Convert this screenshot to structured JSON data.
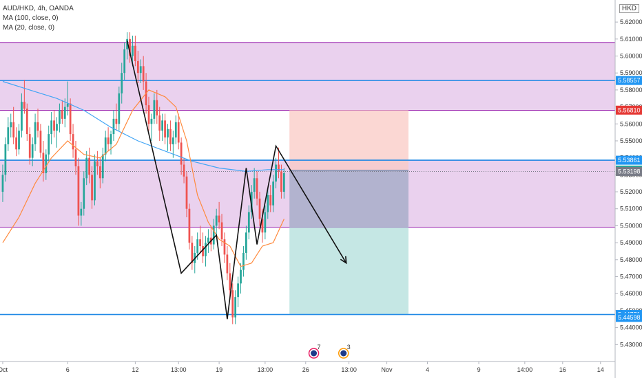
{
  "header": {
    "symbol_line": "AUD/HKD, 4h, OANDA",
    "ma1": "MA (100, close, 0)",
    "ma2": "MA (20, close, 0)",
    "currency": "HKD"
  },
  "events": [
    {
      "icon": "flag-au-icon",
      "count": "7",
      "x_label": "27"
    },
    {
      "icon": "flag-au-icon",
      "count": "3",
      "x_label": "29"
    }
  ],
  "chart_data": {
    "type": "candlestick",
    "symbol": "AUD/HKD",
    "timeframe": "4h",
    "ylim": [
      5.42,
      5.633
    ],
    "y_ticks": [
      "5.62000",
      "5.61000",
      "5.60000",
      "5.59000",
      "5.58000",
      "5.57000",
      "5.56000",
      "5.55000",
      "5.54000",
      "5.53000",
      "5.52000",
      "5.51000",
      "5.50000",
      "5.49000",
      "5.48000",
      "5.47000",
      "5.46000",
      "5.45000",
      "5.44000",
      "5.43000"
    ],
    "x_ticks": [
      {
        "label": "Oct",
        "bar": 0
      },
      {
        "label": "6",
        "bar": 24
      },
      {
        "label": "12",
        "bar": 49
      },
      {
        "label": "13:00",
        "bar": 65
      },
      {
        "label": "19",
        "bar": 80
      },
      {
        "label": "13:00",
        "bar": 97
      },
      {
        "label": "26",
        "bar": 112
      },
      {
        "label": "13:00",
        "bar": 128
      },
      {
        "label": "Nov",
        "bar": 142
      },
      {
        "label": "4",
        "bar": 157
      },
      {
        "label": "9",
        "bar": 176
      },
      {
        "label": "14:00",
        "bar": 193
      },
      {
        "label": "16",
        "bar": 207
      },
      {
        "label": "14",
        "bar": 221
      }
    ],
    "bar_count_span": 224,
    "candles": [
      [
        5.52,
        5.536,
        5.514,
        5.53
      ],
      [
        5.53,
        5.552,
        5.526,
        5.548
      ],
      [
        5.548,
        5.564,
        5.544,
        5.558
      ],
      [
        5.558,
        5.566,
        5.552,
        5.561
      ],
      [
        5.561,
        5.57,
        5.548,
        5.552
      ],
      [
        5.552,
        5.558,
        5.541,
        5.545
      ],
      [
        5.545,
        5.56,
        5.542,
        5.556
      ],
      [
        5.556,
        5.578,
        5.552,
        5.573
      ],
      [
        5.573,
        5.586,
        5.566,
        5.569
      ],
      [
        5.569,
        5.572,
        5.55,
        5.554
      ],
      [
        5.554,
        5.558,
        5.536,
        5.54
      ],
      [
        5.54,
        5.552,
        5.535,
        5.548
      ],
      [
        5.548,
        5.566,
        5.544,
        5.561
      ],
      [
        5.561,
        5.569,
        5.552,
        5.556
      ],
      [
        5.556,
        5.56,
        5.54,
        5.543
      ],
      [
        5.543,
        5.55,
        5.526,
        5.531
      ],
      [
        5.531,
        5.545,
        5.527,
        5.542
      ],
      [
        5.542,
        5.559,
        5.538,
        5.554
      ],
      [
        5.554,
        5.567,
        5.548,
        5.562
      ],
      [
        5.562,
        5.568,
        5.552,
        5.556
      ],
      [
        5.556,
        5.564,
        5.546,
        5.56
      ],
      [
        5.56,
        5.572,
        5.555,
        5.568
      ],
      [
        5.568,
        5.574,
        5.56,
        5.563
      ],
      [
        5.563,
        5.575,
        5.558,
        5.57
      ],
      [
        5.57,
        5.585,
        5.565,
        5.572
      ],
      [
        5.572,
        5.575,
        5.55,
        5.554
      ],
      [
        5.554,
        5.56,
        5.54,
        5.545
      ],
      [
        5.545,
        5.55,
        5.53,
        5.535
      ],
      [
        5.535,
        5.54,
        5.5,
        5.506
      ],
      [
        5.506,
        5.514,
        5.5,
        5.51
      ],
      [
        5.51,
        5.532,
        5.506,
        5.528
      ],
      [
        5.528,
        5.544,
        5.524,
        5.54
      ],
      [
        5.54,
        5.546,
        5.525,
        5.53
      ],
      [
        5.53,
        5.535,
        5.51,
        5.515
      ],
      [
        5.515,
        5.542,
        5.512,
        5.538
      ],
      [
        5.538,
        5.544,
        5.53,
        5.535
      ],
      [
        5.535,
        5.54,
        5.522,
        5.528
      ],
      [
        5.528,
        5.546,
        5.525,
        5.542
      ],
      [
        5.542,
        5.556,
        5.538,
        5.552
      ],
      [
        5.552,
        5.558,
        5.544,
        5.548
      ],
      [
        5.548,
        5.556,
        5.542,
        5.554
      ],
      [
        5.554,
        5.568,
        5.55,
        5.563
      ],
      [
        5.563,
        5.572,
        5.556,
        5.56
      ],
      [
        5.56,
        5.582,
        5.556,
        5.578
      ],
      [
        5.578,
        5.596,
        5.572,
        5.59
      ],
      [
        5.59,
        5.608,
        5.586,
        5.604
      ],
      [
        5.604,
        5.614,
        5.598,
        5.61
      ],
      [
        5.61,
        5.614,
        5.596,
        5.6
      ],
      [
        5.6,
        5.612,
        5.594,
        5.606
      ],
      [
        5.606,
        5.612,
        5.594,
        5.597
      ],
      [
        5.597,
        5.603,
        5.584,
        5.59
      ],
      [
        5.59,
        5.598,
        5.584,
        5.594
      ],
      [
        5.594,
        5.6,
        5.58,
        5.585
      ],
      [
        5.585,
        5.59,
        5.566,
        5.571
      ],
      [
        5.571,
        5.576,
        5.556,
        5.56
      ],
      [
        5.56,
        5.566,
        5.55,
        5.563
      ],
      [
        5.563,
        5.578,
        5.56,
        5.574
      ],
      [
        5.574,
        5.58,
        5.56,
        5.565
      ],
      [
        5.565,
        5.57,
        5.55,
        5.556
      ],
      [
        5.556,
        5.566,
        5.55,
        5.562
      ],
      [
        5.562,
        5.566,
        5.548,
        5.552
      ],
      [
        5.552,
        5.56,
        5.544,
        5.557
      ],
      [
        5.557,
        5.562,
        5.544,
        5.548
      ],
      [
        5.548,
        5.556,
        5.54,
        5.552
      ],
      [
        5.552,
        5.565,
        5.548,
        5.561
      ],
      [
        5.561,
        5.566,
        5.545,
        5.549
      ],
      [
        5.549,
        5.552,
        5.53,
        5.536
      ],
      [
        5.536,
        5.54,
        5.525,
        5.529
      ],
      [
        5.529,
        5.532,
        5.505,
        5.51
      ],
      [
        5.51,
        5.513,
        5.486,
        5.49
      ],
      [
        5.49,
        5.494,
        5.474,
        5.478
      ],
      [
        5.478,
        5.488,
        5.472,
        5.484
      ],
      [
        5.484,
        5.496,
        5.48,
        5.492
      ],
      [
        5.492,
        5.5,
        5.484,
        5.488
      ],
      [
        5.488,
        5.496,
        5.478,
        5.482
      ],
      [
        5.482,
        5.494,
        5.476,
        5.49
      ],
      [
        5.49,
        5.498,
        5.484,
        5.493
      ],
      [
        5.493,
        5.5,
        5.485,
        5.489
      ],
      [
        5.489,
        5.504,
        5.486,
        5.5
      ],
      [
        5.5,
        5.51,
        5.494,
        5.506
      ],
      [
        5.506,
        5.514,
        5.498,
        5.502
      ],
      [
        5.502,
        5.507,
        5.488,
        5.492
      ],
      [
        5.492,
        5.496,
        5.478,
        5.483
      ],
      [
        5.483,
        5.488,
        5.468,
        5.472
      ],
      [
        5.472,
        5.478,
        5.458,
        5.462
      ],
      [
        5.462,
        5.466,
        5.442,
        5.446
      ],
      [
        5.446,
        5.462,
        5.442,
        5.458
      ],
      [
        5.458,
        5.47,
        5.452,
        5.466
      ],
      [
        5.466,
        5.478,
        5.46,
        5.474
      ],
      [
        5.474,
        5.488,
        5.47,
        5.484
      ],
      [
        5.484,
        5.5,
        5.48,
        5.496
      ],
      [
        5.496,
        5.512,
        5.492,
        5.508
      ],
      [
        5.508,
        5.524,
        5.504,
        5.52
      ],
      [
        5.52,
        5.534,
        5.516,
        5.528
      ],
      [
        5.528,
        5.532,
        5.512,
        5.516
      ],
      [
        5.516,
        5.52,
        5.5,
        5.504
      ],
      [
        5.504,
        5.51,
        5.49,
        5.496
      ],
      [
        5.496,
        5.512,
        5.492,
        5.508
      ],
      [
        5.508,
        5.522,
        5.504,
        5.518
      ],
      [
        5.518,
        5.524,
        5.508,
        5.512
      ],
      [
        5.512,
        5.53,
        5.508,
        5.526
      ],
      [
        5.526,
        5.54,
        5.522,
        5.536
      ],
      [
        5.536,
        5.546,
        5.528,
        5.532
      ],
      [
        5.532,
        5.536,
        5.516,
        5.52
      ],
      [
        5.52,
        5.534,
        5.516,
        5.531
      ]
    ],
    "ma100": [
      [
        0,
        5.585
      ],
      [
        10,
        5.58
      ],
      [
        20,
        5.575
      ],
      [
        30,
        5.568
      ],
      [
        40,
        5.558
      ],
      [
        50,
        5.55
      ],
      [
        60,
        5.544
      ],
      [
        70,
        5.538
      ],
      [
        80,
        5.534
      ],
      [
        90,
        5.532
      ],
      [
        98,
        5.533
      ],
      [
        104,
        5.533
      ]
    ],
    "ma20": [
      [
        0,
        5.49
      ],
      [
        6,
        5.505
      ],
      [
        12,
        5.525
      ],
      [
        18,
        5.54
      ],
      [
        24,
        5.55
      ],
      [
        30,
        5.542
      ],
      [
        36,
        5.54
      ],
      [
        42,
        5.548
      ],
      [
        48,
        5.568
      ],
      [
        54,
        5.58
      ],
      [
        60,
        5.576
      ],
      [
        64,
        5.57
      ],
      [
        68,
        5.55
      ],
      [
        72,
        5.518
      ],
      [
        76,
        5.502
      ],
      [
        80,
        5.492
      ],
      [
        84,
        5.488
      ],
      [
        88,
        5.476
      ],
      [
        92,
        5.478
      ],
      [
        96,
        5.488
      ],
      [
        100,
        5.49
      ],
      [
        104,
        5.504
      ]
    ],
    "zones": [
      {
        "type": "supply",
        "y1": 5.568,
        "y2": 5.608
      },
      {
        "type": "demand",
        "y1": 5.499,
        "y2": 5.5386
      }
    ],
    "levels": [
      {
        "y": 5.58557,
        "label": "5.58557"
      },
      {
        "y": 5.53861,
        "label": "5.53861"
      },
      {
        "y": 5.44771,
        "label": "5.44771"
      }
    ],
    "position": {
      "entry": 5.5328,
      "stop": 5.5681,
      "target": 5.4477,
      "start_bar": 106,
      "end_bar": 150
    },
    "price_tags": [
      {
        "value": 5.5681,
        "label": "5.56810",
        "color": "#e53935"
      },
      {
        "value": 5.53861,
        "label": "5.53861",
        "color": "#2196f3"
      },
      {
        "value": 5.5328,
        "label": "5.53280",
        "color": "#26a69a"
      },
      {
        "value": 5.53198,
        "label": "5.53198",
        "color": "#787b86"
      },
      {
        "value": 5.58557,
        "label": "5.58557",
        "color": "#2196f3"
      },
      {
        "value": 5.44771,
        "label": "5.44771",
        "color": "#2196f3"
      },
      {
        "value": 5.44598,
        "label": "5.44598",
        "color": "#2196f3"
      }
    ],
    "zigzag": [
      [
        46,
        5.609
      ],
      [
        66,
        5.472
      ],
      [
        79,
        5.4945
      ],
      [
        83,
        5.445
      ],
      [
        90,
        5.534
      ],
      [
        94,
        5.489
      ],
      [
        101,
        5.547
      ],
      [
        127,
        5.478
      ]
    ],
    "colors": {
      "up": "#26a69a",
      "down": "#ef5350",
      "ma100": "#42a5f5",
      "ma20": "#ff8a3d",
      "zone_fill": "#e1bee7",
      "zone_border": "#9c27b0",
      "level": "#1e88e5",
      "stop_fill": "#f9c9c4",
      "target_fill": "#b2dfdb",
      "entry_fill": "#9fa8c4"
    }
  }
}
